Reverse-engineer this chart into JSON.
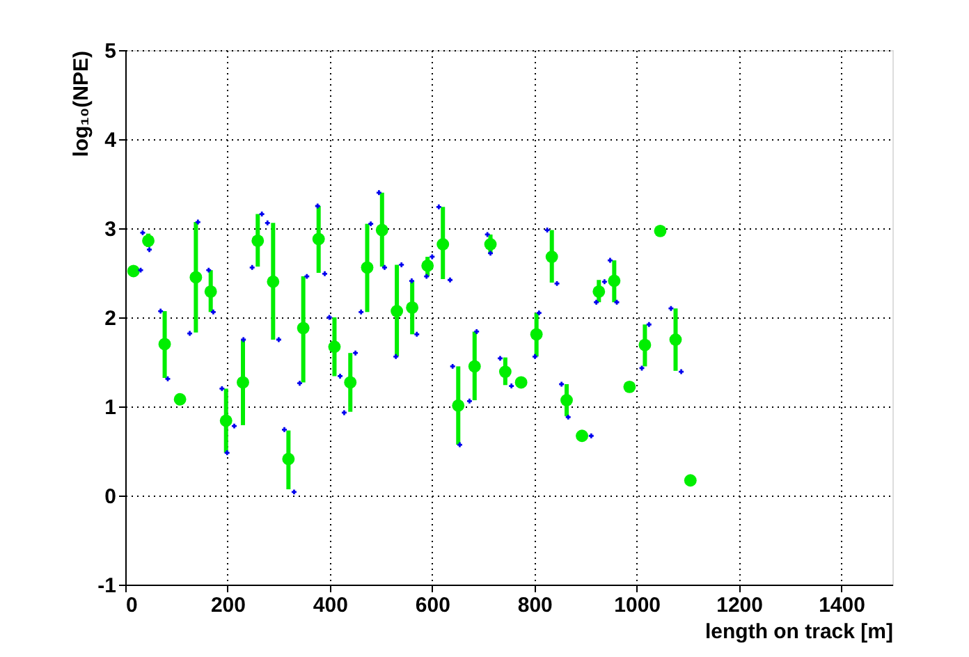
{
  "chart_data": {
    "type": "scatter",
    "xlabel": "length on track [m]",
    "ylabel": "log₁₀(NPE)",
    "xlim": [
      0,
      1500
    ],
    "xticks": [
      0,
      200,
      400,
      600,
      800,
      1000,
      1200,
      1400
    ],
    "ylim": [
      -1,
      5
    ],
    "yticks": [
      -1,
      0,
      1,
      2,
      3,
      4,
      5
    ],
    "grid": true,
    "series": [
      {
        "color": "#00ee00",
        "marker": "circle",
        "x": [
          16,
          45,
          77,
          107,
          138,
          167,
          197,
          230,
          259,
          289,
          319,
          348,
          378,
          409,
          440,
          473,
          502,
          531,
          561,
          591,
          621,
          651,
          683,
          714,
          743,
          774,
          804,
          834,
          863,
          893,
          926,
          956,
          986,
          1016,
          1046,
          1076,
          1105
        ],
        "values": [
          2.52,
          2.86,
          1.7,
          1.08,
          2.45,
          2.29,
          0.84,
          1.27,
          2.86,
          2.4,
          0.41,
          1.88,
          2.88,
          1.67,
          1.27,
          2.56,
          2.98,
          2.07,
          2.11,
          2.58,
          2.82,
          1.01,
          1.45,
          2.82,
          1.39,
          1.27,
          1.81,
          2.68,
          1.07,
          0.67,
          2.29,
          2.41,
          1.22,
          1.69,
          2.97,
          1.75,
          0.17
        ],
        "errors": [
          null,
          [
            2.79,
            2.94
          ],
          [
            1.32,
            2.07
          ],
          null,
          [
            1.83,
            3.07
          ],
          [
            2.06,
            2.53
          ],
          [
            0.48,
            1.2
          ],
          [
            0.79,
            1.75
          ],
          [
            2.57,
            3.16
          ],
          [
            1.75,
            3.06
          ],
          [
            0.07,
            0.73
          ],
          [
            1.27,
            2.46
          ],
          [
            2.5,
            3.25
          ],
          [
            1.34,
            2.0
          ],
          [
            0.94,
            1.6
          ],
          [
            2.06,
            3.05
          ],
          [
            2.57,
            3.4
          ],
          [
            1.56,
            2.59
          ],
          [
            1.81,
            2.41
          ],
          [
            2.46,
            2.68
          ],
          [
            2.43,
            3.24
          ],
          [
            0.57,
            1.45
          ],
          [
            1.07,
            1.84
          ],
          [
            2.72,
            2.93
          ],
          [
            1.24,
            1.55
          ],
          null,
          [
            1.56,
            2.05
          ],
          [
            2.39,
            2.98
          ],
          [
            0.89,
            1.25
          ],
          null,
          [
            2.17,
            2.42
          ],
          [
            2.17,
            2.64
          ],
          null,
          [
            1.45,
            1.92
          ],
          null,
          [
            1.4,
            2.1
          ],
          null
        ]
      },
      {
        "color": "#0000ee",
        "marker": "cross",
        "x": [
          30,
          34,
          47,
          69,
          83,
          142,
          126,
          163,
          172,
          189,
          199,
          231,
          213,
          267,
          248,
          278,
          300,
          311,
          330,
          355,
          341,
          376,
          390,
          399,
          420,
          450,
          428,
          480,
          461,
          496,
          507,
          540,
          529,
          560,
          570,
          600,
          589,
          613,
          635,
          640,
          654,
          687,
          673,
          708,
          714,
          733,
          755,
          809,
          801,
          825,
          844,
          853,
          866,
          911,
          937,
          921,
          948,
          961,
          1024,
          1010,
          1067,
          1087
        ],
        "values": [
          2.53,
          2.95,
          2.76,
          2.07,
          1.31,
          3.07,
          1.82,
          2.53,
          2.06,
          1.2,
          0.48,
          1.75,
          0.78,
          3.16,
          2.56,
          3.06,
          1.75,
          0.74,
          0.04,
          2.46,
          1.26,
          3.25,
          2.49,
          2.0,
          1.34,
          1.6,
          0.93,
          3.05,
          2.06,
          3.4,
          2.56,
          2.59,
          1.56,
          2.41,
          1.81,
          2.68,
          2.46,
          3.24,
          2.42,
          1.45,
          0.57,
          1.84,
          1.06,
          2.93,
          2.72,
          1.54,
          1.23,
          2.05,
          1.56,
          2.98,
          2.38,
          1.25,
          0.88,
          0.67,
          2.4,
          2.17,
          2.64,
          2.17,
          1.92,
          1.43,
          2.1,
          1.39
        ]
      }
    ]
  }
}
